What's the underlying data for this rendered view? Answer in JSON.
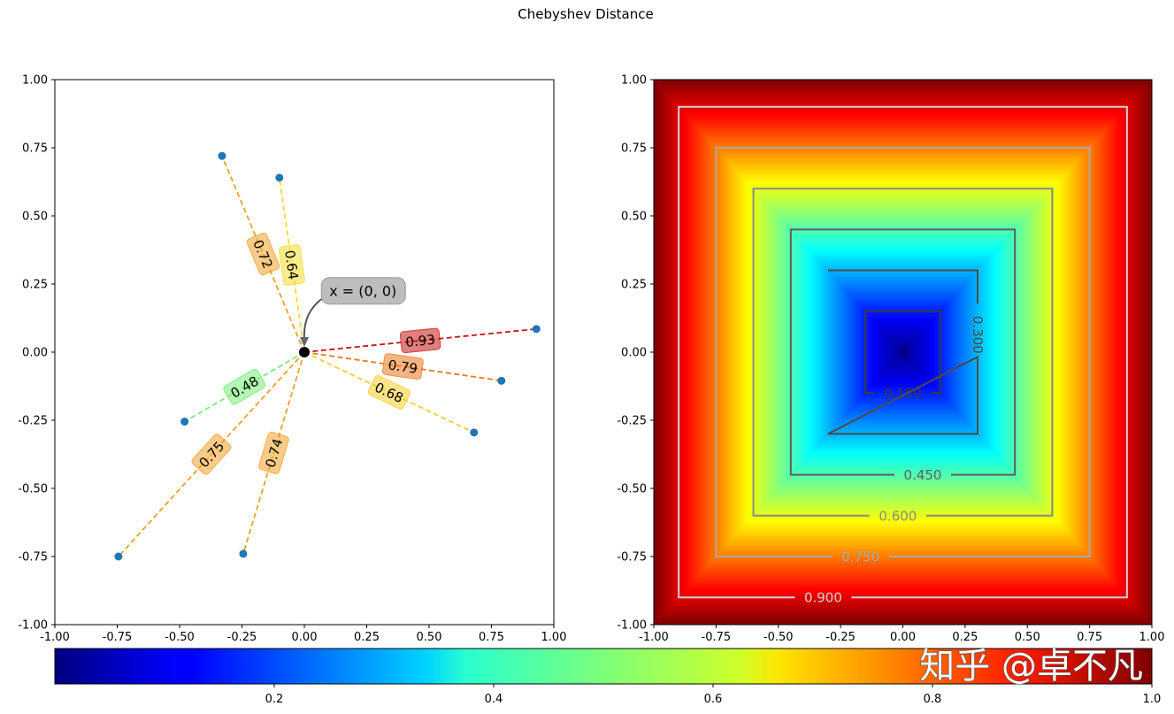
{
  "chart_data": [
    {
      "type": "scatter",
      "title": "Chebyshev Distance",
      "panel": "left",
      "xlim": [
        -1.0,
        1.0
      ],
      "ylim": [
        -1.0,
        1.0
      ],
      "xticks": [
        "-1.00",
        "-0.75",
        "-0.50",
        "-0.25",
        "0.00",
        "0.25",
        "0.50",
        "0.75",
        "1.00"
      ],
      "yticks": [
        "-1.00",
        "-0.75",
        "-0.50",
        "-0.25",
        "0.00",
        "0.25",
        "0.50",
        "0.75",
        "1.00"
      ],
      "tick_values": [
        -1.0,
        -0.75,
        -0.5,
        -0.25,
        0.0,
        0.25,
        0.5,
        0.75,
        1.0
      ],
      "origin": {
        "x": 0,
        "y": 0,
        "label": "x = (0, 0)"
      },
      "points": [
        {
          "x": -0.33,
          "y": 0.72,
          "distance": "0.72",
          "color": "#f0a028"
        },
        {
          "x": -0.1,
          "y": 0.64,
          "distance": "0.64",
          "color": "#f5dc2e"
        },
        {
          "x": 0.93,
          "y": 0.085,
          "distance": "0.93",
          "color": "#c81414"
        },
        {
          "x": 0.79,
          "y": -0.105,
          "distance": "0.79",
          "color": "#ec781e"
        },
        {
          "x": 0.68,
          "y": -0.295,
          "distance": "0.68",
          "color": "#f5cd2d"
        },
        {
          "x": -0.48,
          "y": -0.255,
          "distance": "0.48",
          "color": "#78ec78"
        },
        {
          "x": -0.745,
          "y": -0.75,
          "distance": "0.75",
          "color": "#f0a028"
        },
        {
          "x": -0.245,
          "y": -0.74,
          "distance": "0.74",
          "color": "#f0a028"
        }
      ],
      "point_color": "#1f77b4"
    },
    {
      "type": "heatmap",
      "panel": "right",
      "metric": "max(|x|, |y|)",
      "colormap": "jet",
      "xlim": [
        -1.0,
        1.0
      ],
      "ylim": [
        -1.0,
        1.0
      ],
      "xticks": [
        "-1.00",
        "-0.75",
        "-0.50",
        "-0.25",
        "0.00",
        "0.25",
        "0.50",
        "0.75",
        "1.00"
      ],
      "yticks": [
        "-1.00",
        "-0.75",
        "-0.50",
        "-0.25",
        "0.00",
        "0.25",
        "0.50",
        "0.75",
        "1.00"
      ],
      "tick_values": [
        -1.0,
        -0.75,
        -0.5,
        -0.25,
        0.0,
        0.25,
        0.5,
        0.75,
        1.0
      ],
      "contours": [
        {
          "level": 0.15,
          "label": "0.150",
          "color": "#3c3c3c"
        },
        {
          "level": 0.3,
          "label": "0.300",
          "color": "#4b4b4b"
        },
        {
          "level": 0.45,
          "label": "0.450",
          "color": "#5f5f5f"
        },
        {
          "level": 0.6,
          "label": "0.600",
          "color": "#8a8a8a"
        },
        {
          "level": 0.75,
          "label": "0.750",
          "color": "#a8a8a8"
        },
        {
          "level": 0.9,
          "label": "0.900",
          "color": "#d2d2d2"
        }
      ]
    },
    {
      "type": "colorbar",
      "colormap": "jet",
      "range": [
        0.0,
        1.0
      ],
      "ticks": [
        0.2,
        0.4,
        0.6,
        0.8,
        1.0
      ],
      "tick_labels": [
        "0.2",
        "0.4",
        "0.6",
        "0.8",
        "1.0"
      ]
    }
  ],
  "watermark": "知乎 @卓不凡"
}
